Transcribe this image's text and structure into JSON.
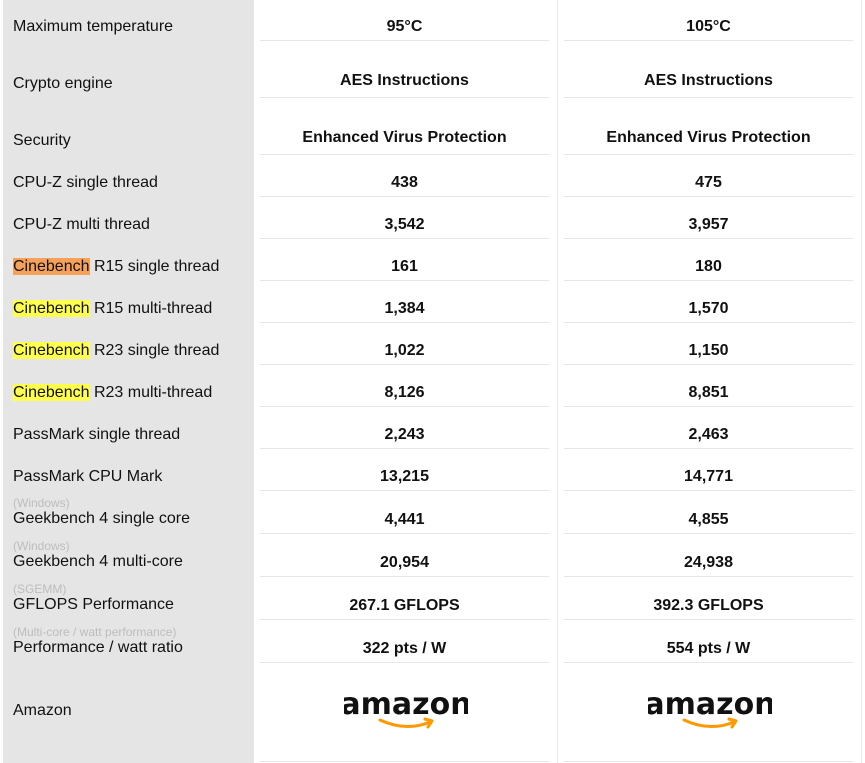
{
  "rows": [
    {
      "label": "Maximum temperature",
      "note": "",
      "a": "95°C",
      "b": "105°C"
    },
    {
      "label": "Crypto engine",
      "note": "",
      "a": "AES Instructions",
      "b": "AES Instructions"
    },
    {
      "label": "Security",
      "note": "",
      "a": "Enhanced Virus Protection",
      "b": "Enhanced Virus Protection"
    },
    {
      "label": "CPU-Z single thread",
      "note": "",
      "a": "438",
      "b": "475"
    },
    {
      "label": "CPU-Z multi thread",
      "note": "",
      "a": "3,542",
      "b": "3,957"
    },
    {
      "label_hl": "Cinebench",
      "label_rest": " R15 single thread",
      "hl": "orange",
      "note": "",
      "a": "161",
      "b": "180"
    },
    {
      "label_hl": "Cinebench",
      "label_rest": " R15 multi-thread",
      "hl": "yellow",
      "note": "",
      "a": "1,384",
      "b": "1,570"
    },
    {
      "label_hl": "Cinebench",
      "label_rest": " R23 single thread",
      "hl": "yellow",
      "note": "",
      "a": "1,022",
      "b": "1,150"
    },
    {
      "label_hl": "Cinebench",
      "label_rest": " R23 multi-thread",
      "hl": "yellow",
      "note": "",
      "a": "8,126",
      "b": "8,851"
    },
    {
      "label": "PassMark single thread",
      "note": "",
      "a": "2,243",
      "b": "2,463"
    },
    {
      "label": "PassMark CPU Mark",
      "note": "",
      "a": "13,215",
      "b": "14,771"
    },
    {
      "label": "Geekbench 4 single core",
      "note": "(Windows)",
      "a": "4,441",
      "b": "4,855"
    },
    {
      "label": "Geekbench 4 multi-core",
      "note": "(Windows)",
      "a": "20,954",
      "b": "24,938"
    },
    {
      "label": "GFLOPS Performance",
      "note": "(SGEMM)",
      "a": "267.1 GFLOPS",
      "b": "392.3 GFLOPS"
    },
    {
      "label": "Performance / watt ratio",
      "note": "(Multi-core / watt performance)",
      "a": "322 pts / W",
      "b": "554 pts / W"
    }
  ],
  "amazon": {
    "label": "Amazon",
    "logo_text": "amazon"
  }
}
